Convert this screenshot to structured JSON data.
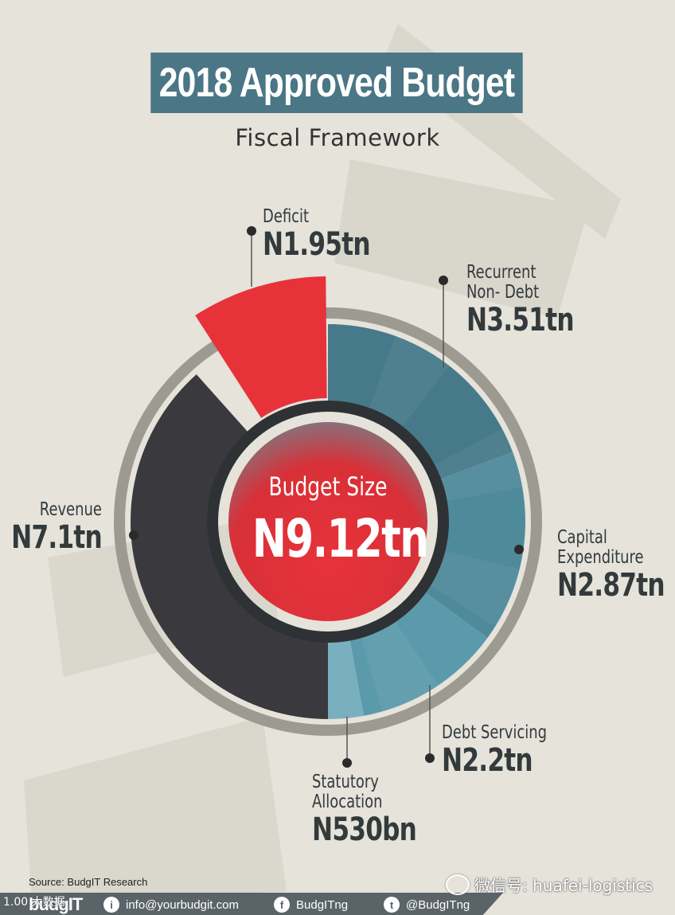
{
  "header": {
    "title": "2018 Approved Budget",
    "subtitle": "Fiscal Framework"
  },
  "chart_data": {
    "type": "pie",
    "title": "2018 Approved Budget",
    "subtitle": "Fiscal Framework",
    "center_label": "Budget Size",
    "center_value_label": "N9.12tn",
    "total": 9.12,
    "unit": "tn",
    "funding": [
      {
        "name": "Revenue",
        "label": "N7.1tn",
        "value": 7.1,
        "color": "#3a3a3e"
      },
      {
        "name": "Deficit",
        "label": "N1.95tn",
        "value": 1.95,
        "color": "#e8323a"
      }
    ],
    "spending": [
      {
        "name": "Recurrent Non- Debt",
        "name_lines": [
          "Recurrent",
          "Non- Debt"
        ],
        "label": "N3.51tn",
        "value": 3.51,
        "color": "#467a8a"
      },
      {
        "name": "Capital Expenditure",
        "name_lines": [
          "Capital",
          "Expenditure"
        ],
        "label": "N2.87tn",
        "value": 2.87,
        "color": "#4f8a9b"
      },
      {
        "name": "Debt Servicing",
        "name_lines": [
          "Debt Servicing"
        ],
        "label": "N2.2tn",
        "value": 2.2,
        "color": "#5b9aab"
      },
      {
        "name": "Statutory Allocation",
        "name_lines": [
          "Statutory",
          "Allocation"
        ],
        "label": "N530bn",
        "value": 0.53,
        "color": "#79afbe"
      }
    ],
    "colors": {
      "ring": "#9c9a91",
      "inner_ring": "#2e3234",
      "background": "#e5e3da"
    }
  },
  "footer": {
    "source": "Source: BudgIT Research",
    "logo": "budgIT",
    "email": "info@yourbudgit.com",
    "facebook": "BudgITng",
    "twitter": "@BudgITng",
    "email_icon": "info-icon",
    "facebook_icon": "facebook-icon",
    "twitter_icon": "twitter-icon"
  },
  "overlay": {
    "wechat_label": "微信号: huafei-logistics",
    "corner_mark": "1.00 大数据"
  }
}
